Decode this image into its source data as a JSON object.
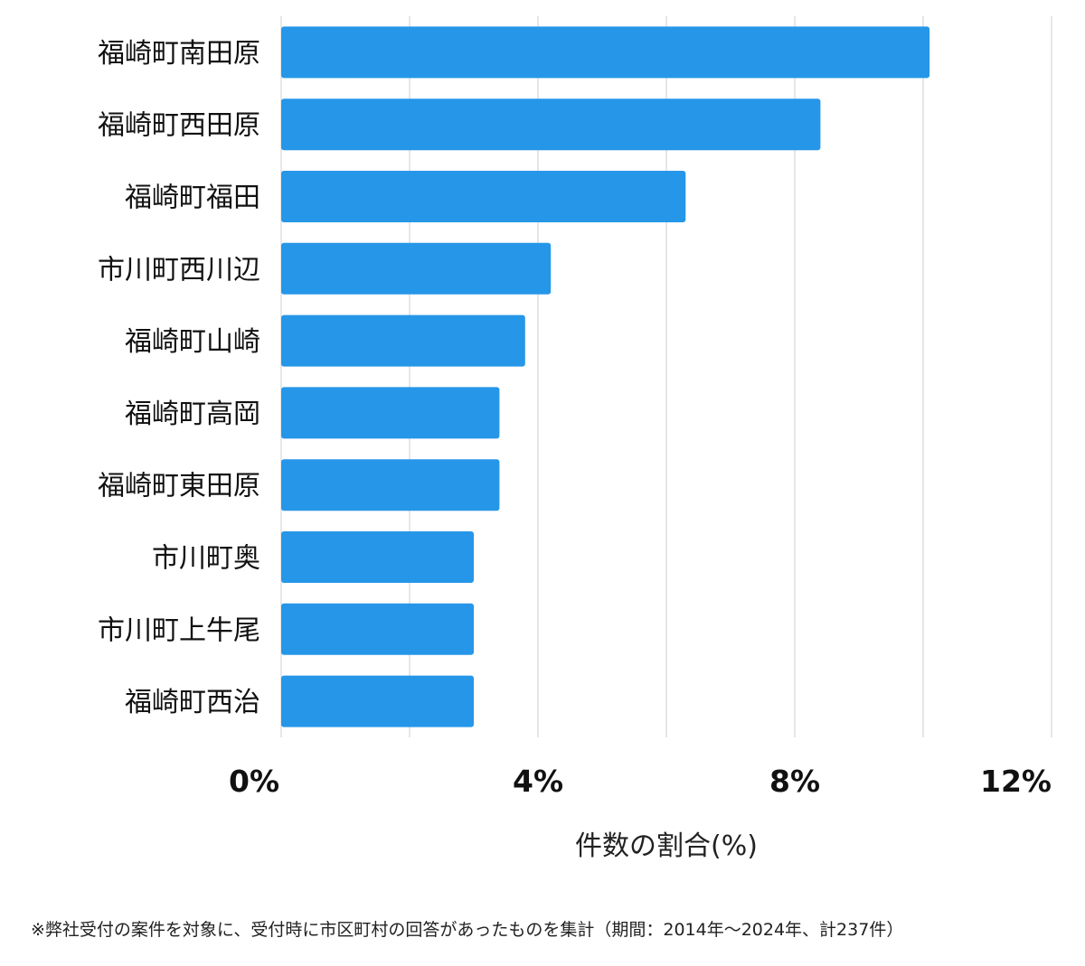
{
  "chart_data": {
    "type": "bar",
    "orientation": "horizontal",
    "categories": [
      "福崎町南田原",
      "福崎町西田原",
      "福崎町福田",
      "市川町西川辺",
      "福崎町山崎",
      "福崎町高岡",
      "福崎町東田原",
      "市川町奥",
      "市川町上牛尾",
      "福崎町西治"
    ],
    "values": [
      10.1,
      8.4,
      6.3,
      4.2,
      3.8,
      3.4,
      3.4,
      3.0,
      3.0,
      3.0
    ],
    "xlim": [
      0,
      12
    ],
    "xticks": [
      0,
      4,
      8,
      12
    ],
    "xtick_labels": [
      "0%",
      "4%",
      "8%",
      "12%"
    ],
    "gridlines_at": [
      0,
      2,
      4,
      6,
      8,
      10,
      12
    ],
    "grid": true,
    "xlabel": "件数の割合(%)",
    "bar_color": "#2696e8",
    "grid_color": "#dddddd"
  },
  "footnote": "※弊社受付の案件を対象に、受付時に市区町村の回答があったものを集計（期間：2014年～2024年、計237件）"
}
